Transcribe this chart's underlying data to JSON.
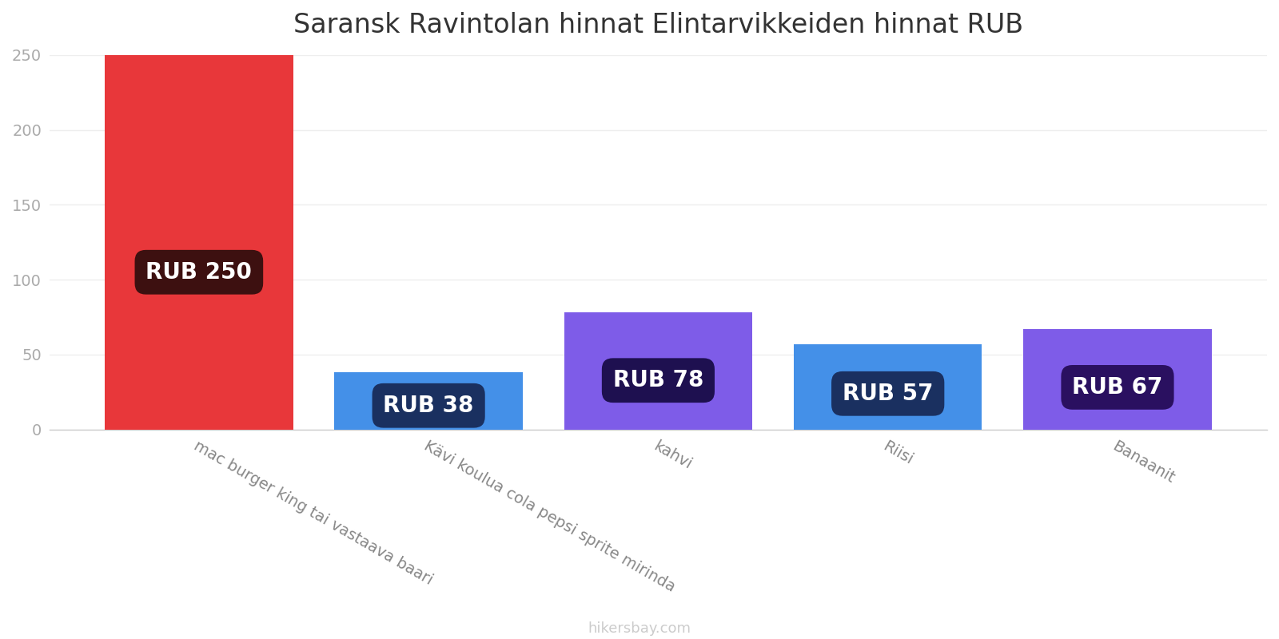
{
  "title": "Saransk Ravintolan hinnat Elintarvikkeiden hinnat RUB",
  "categories": [
    "mac burger king tai vastaava baari",
    "Kävi koulua cola pepsi sprite mirinda",
    "kahvi",
    "Riisi",
    "Banaanit"
  ],
  "values": [
    250,
    38,
    78,
    57,
    67
  ],
  "bar_colors": [
    "#e8373a",
    "#4490e8",
    "#7e5ce8",
    "#4490e8",
    "#7e5ce8"
  ],
  "label_texts": [
    "RUB 250",
    "RUB 38",
    "RUB 78",
    "RUB 57",
    "RUB 67"
  ],
  "label_box_colors": [
    "#3d1010",
    "#1a3060",
    "#1e1050",
    "#1a3060",
    "#2a1060"
  ],
  "ylabel_max": 250,
  "yticks": [
    0,
    50,
    100,
    150,
    200,
    250
  ],
  "footer": "hikersbay.com",
  "title_fontsize": 24,
  "label_fontsize": 20,
  "tick_fontsize": 14,
  "footer_fontsize": 13,
  "background_color": "#ffffff",
  "bar_width": 0.82
}
